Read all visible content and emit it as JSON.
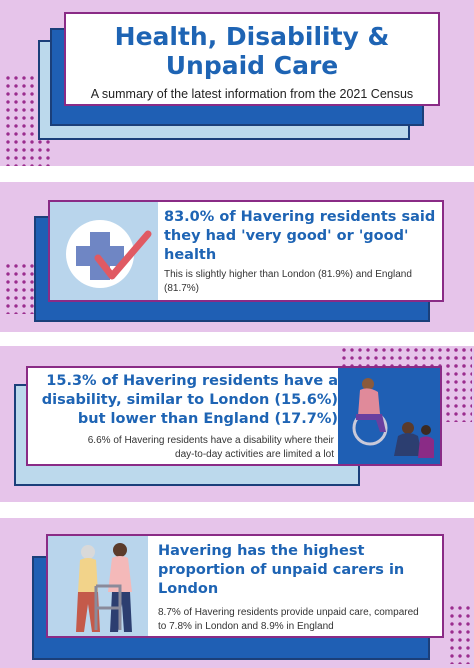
{
  "header": {
    "title_line1": "Health, Disability &",
    "title_line2": "Unpaid Care",
    "subtitle": "A summary of the latest information from the 2021 Census"
  },
  "sections": [
    {
      "heading_lines": [
        "83.0% of Havering residents said",
        "they had 'very good' or 'good'",
        "health"
      ],
      "body_lines": [
        "This is slightly higher than London (81.9%) and England",
        "(81.7%)"
      ],
      "icon": "health-cross-check-icon"
    },
    {
      "heading_lines": [
        "15.3% of Havering residents have a",
        "disability, similar to London (15.6%)",
        "but lower than England (17.7%)"
      ],
      "body_lines": [
        "6.6% of Havering residents have a disability where their",
        "day-to-day activities are limited a lot"
      ],
      "icon": "disability-people-illustration"
    },
    {
      "heading_lines": [
        "Havering has the highest",
        "proportion of unpaid carers in",
        "London"
      ],
      "body_lines": [
        "8.7% of Havering residents provide unpaid care, compared",
        "to 7.8% in London and 8.9% in England"
      ],
      "icon": "carer-illustration"
    }
  ],
  "colors": {
    "band": "#e6c4ea",
    "accent_blue": "#1e64b4",
    "plate_blue": "#1f5fb4",
    "plate_light": "#bcd9ec",
    "dot_purple": "#9b2d8e",
    "card_border": "#8a2b86"
  }
}
